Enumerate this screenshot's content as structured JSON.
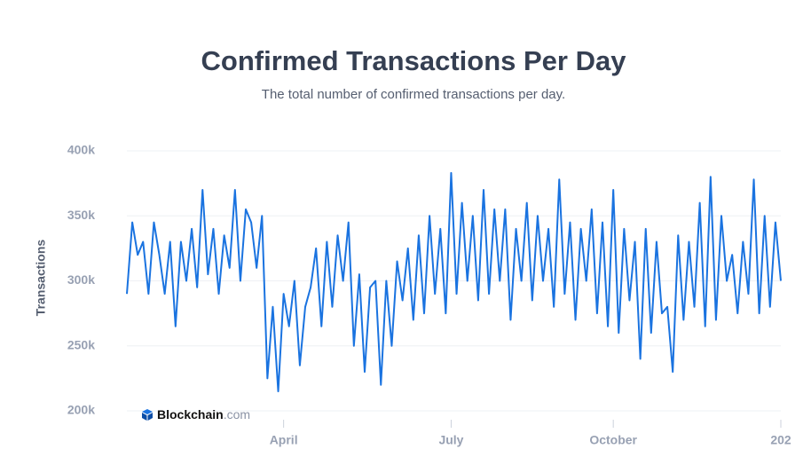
{
  "chart_data": {
    "type": "line",
    "title": "Confirmed Transactions Per Day",
    "subtitle": "The total number of confirmed transactions per day.",
    "y_label": "Transactions",
    "brand": "Blockchain",
    "brand_suffix": ".com",
    "color": "#1a73e0",
    "grid": true,
    "ylim": [
      200000,
      400000
    ],
    "yticks": [
      {
        "value": 200000,
        "label": "200k"
      },
      {
        "value": 250000,
        "label": "250k"
      },
      {
        "value": 300000,
        "label": "300k"
      },
      {
        "value": 350000,
        "label": "350k"
      },
      {
        "value": 400000,
        "label": "400k"
      }
    ],
    "categories": [
      null,
      null,
      null,
      null,
      null,
      null,
      null,
      null,
      null,
      null,
      null,
      null,
      null,
      null,
      null,
      null,
      null,
      null,
      null,
      null,
      null,
      null,
      null,
      null,
      null,
      null,
      null,
      null,
      null,
      "April",
      null,
      null,
      null,
      null,
      null,
      null,
      null,
      null,
      null,
      null,
      null,
      null,
      null,
      null,
      null,
      null,
      null,
      null,
      null,
      null,
      null,
      null,
      null,
      null,
      null,
      null,
      null,
      null,
      null,
      null,
      "July",
      null,
      null,
      null,
      null,
      null,
      null,
      null,
      null,
      null,
      null,
      null,
      null,
      null,
      null,
      null,
      null,
      null,
      null,
      null,
      null,
      null,
      null,
      null,
      null,
      null,
      null,
      null,
      null,
      null,
      "October",
      null,
      null,
      null,
      null,
      null,
      null,
      null,
      null,
      null,
      null,
      null,
      null,
      null,
      null,
      null,
      null,
      null,
      null,
      null,
      null,
      null,
      null,
      null,
      null,
      null,
      null,
      null,
      null,
      null,
      null,
      "202"
    ],
    "values": [
      290000,
      345000,
      320000,
      330000,
      290000,
      345000,
      320000,
      290000,
      330000,
      265000,
      330000,
      300000,
      340000,
      295000,
      370000,
      305000,
      340000,
      290000,
      335000,
      310000,
      370000,
      300000,
      355000,
      345000,
      310000,
      350000,
      225000,
      280000,
      215000,
      290000,
      265000,
      300000,
      235000,
      280000,
      295000,
      325000,
      265000,
      330000,
      280000,
      335000,
      300000,
      345000,
      250000,
      305000,
      230000,
      295000,
      300000,
      220000,
      300000,
      250000,
      315000,
      285000,
      325000,
      270000,
      335000,
      275000,
      350000,
      290000,
      340000,
      275000,
      383000,
      290000,
      360000,
      300000,
      350000,
      285000,
      370000,
      290000,
      355000,
      300000,
      355000,
      270000,
      340000,
      300000,
      360000,
      285000,
      350000,
      300000,
      340000,
      280000,
      378000,
      290000,
      345000,
      270000,
      340000,
      300000,
      355000,
      275000,
      345000,
      265000,
      370000,
      260000,
      340000,
      285000,
      330000,
      240000,
      340000,
      260000,
      330000,
      275000,
      280000,
      230000,
      335000,
      270000,
      330000,
      280000,
      360000,
      265000,
      380000,
      270000,
      350000,
      300000,
      320000,
      275000,
      330000,
      290000,
      378000,
      275000,
      350000,
      280000,
      345000,
      300000
    ]
  }
}
